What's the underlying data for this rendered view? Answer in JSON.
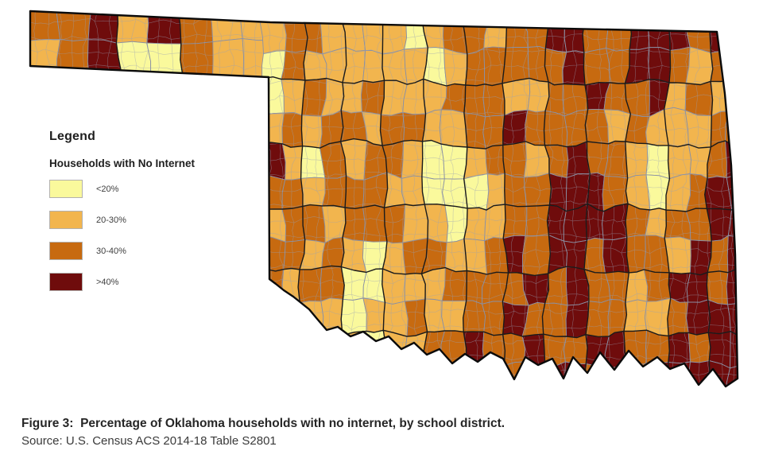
{
  "legend": {
    "title": "Legend",
    "subtitle": "Households with No Internet"
  },
  "caption": {
    "figure": "Figure 3:  Percentage of Oklahoma households with no internet, by school district.",
    "source": "Source: U.S. Census ACS 2014-18 Table S2801"
  },
  "chart_data": {
    "type": "heatmap",
    "subtype": "choropleth-map",
    "region": "Oklahoma",
    "geography_unit": "school district",
    "metric": "Percentage of households with no internet",
    "classes": [
      {
        "label": "<20%",
        "color": "#FAF99C"
      },
      {
        "label": "20-30%",
        "color": "#F2B54E"
      },
      {
        "label": "30-40%",
        "color": "#C76A10"
      },
      {
        "label": ">40%",
        "color": "#6F0C0C"
      }
    ],
    "border_colors": {
      "district": "#8A91A5",
      "county": "#1A1A1A",
      "state": "#0B0B0B"
    },
    "panhandle_grid": [
      [
        2,
        2,
        3,
        1,
        3,
        2,
        1,
        1
      ],
      [
        1,
        2,
        3,
        0,
        0,
        2,
        1,
        1
      ]
    ],
    "main_grid": [
      [
        1,
        2,
        2,
        1,
        1,
        1,
        1,
        0,
        1,
        2,
        2,
        1,
        2,
        2,
        3,
        3,
        2,
        2,
        3,
        3,
        3,
        2,
        3,
        2
      ],
      [
        0,
        2,
        1,
        1,
        1,
        1,
        1,
        1,
        0,
        1,
        2,
        2,
        2,
        2,
        2,
        3,
        2,
        2,
        3,
        3,
        2,
        1,
        2,
        3
      ],
      [
        0,
        1,
        2,
        1,
        1,
        2,
        1,
        1,
        1,
        2,
        2,
        2,
        1,
        1,
        2,
        2,
        3,
        2,
        2,
        3,
        1,
        2,
        1,
        3
      ],
      [
        1,
        2,
        1,
        2,
        2,
        1,
        2,
        2,
        1,
        1,
        2,
        2,
        3,
        2,
        2,
        2,
        2,
        1,
        2,
        1,
        1,
        1,
        2,
        2
      ],
      [
        3,
        1,
        0,
        2,
        1,
        2,
        2,
        1,
        0,
        0,
        1,
        2,
        2,
        1,
        2,
        3,
        2,
        2,
        1,
        0,
        1,
        1,
        2,
        3
      ],
      [
        2,
        2,
        1,
        2,
        2,
        2,
        1,
        1,
        0,
        0,
        0,
        1,
        2,
        2,
        3,
        3,
        3,
        2,
        1,
        0,
        1,
        2,
        3,
        3
      ],
      [
        1,
        2,
        2,
        1,
        2,
        2,
        2,
        1,
        1,
        0,
        1,
        1,
        2,
        2,
        3,
        3,
        3,
        3,
        2,
        1,
        2,
        2,
        3,
        3
      ],
      [
        2,
        2,
        1,
        2,
        1,
        0,
        1,
        2,
        2,
        1,
        1,
        2,
        3,
        2,
        3,
        3,
        2,
        3,
        2,
        2,
        1,
        3,
        2,
        3
      ],
      [
        2,
        1,
        2,
        2,
        0,
        0,
        1,
        1,
        1,
        2,
        2,
        2,
        2,
        3,
        2,
        3,
        2,
        2,
        1,
        2,
        3,
        3,
        2,
        3
      ],
      [
        2,
        2,
        1,
        1,
        0,
        1,
        1,
        2,
        1,
        1,
        2,
        2,
        3,
        2,
        2,
        3,
        2,
        2,
        1,
        1,
        2,
        3,
        3,
        3
      ],
      [
        1,
        1,
        2,
        2,
        1,
        0,
        1,
        1,
        2,
        2,
        3,
        2,
        2,
        3,
        2,
        2,
        3,
        3,
        2,
        2,
        3,
        2,
        3,
        3
      ],
      [
        2,
        2,
        2,
        2,
        2,
        1,
        1,
        2,
        2,
        2,
        3,
        2,
        2,
        2,
        3,
        3,
        2,
        2,
        2,
        3,
        3,
        3,
        3,
        3
      ]
    ]
  }
}
